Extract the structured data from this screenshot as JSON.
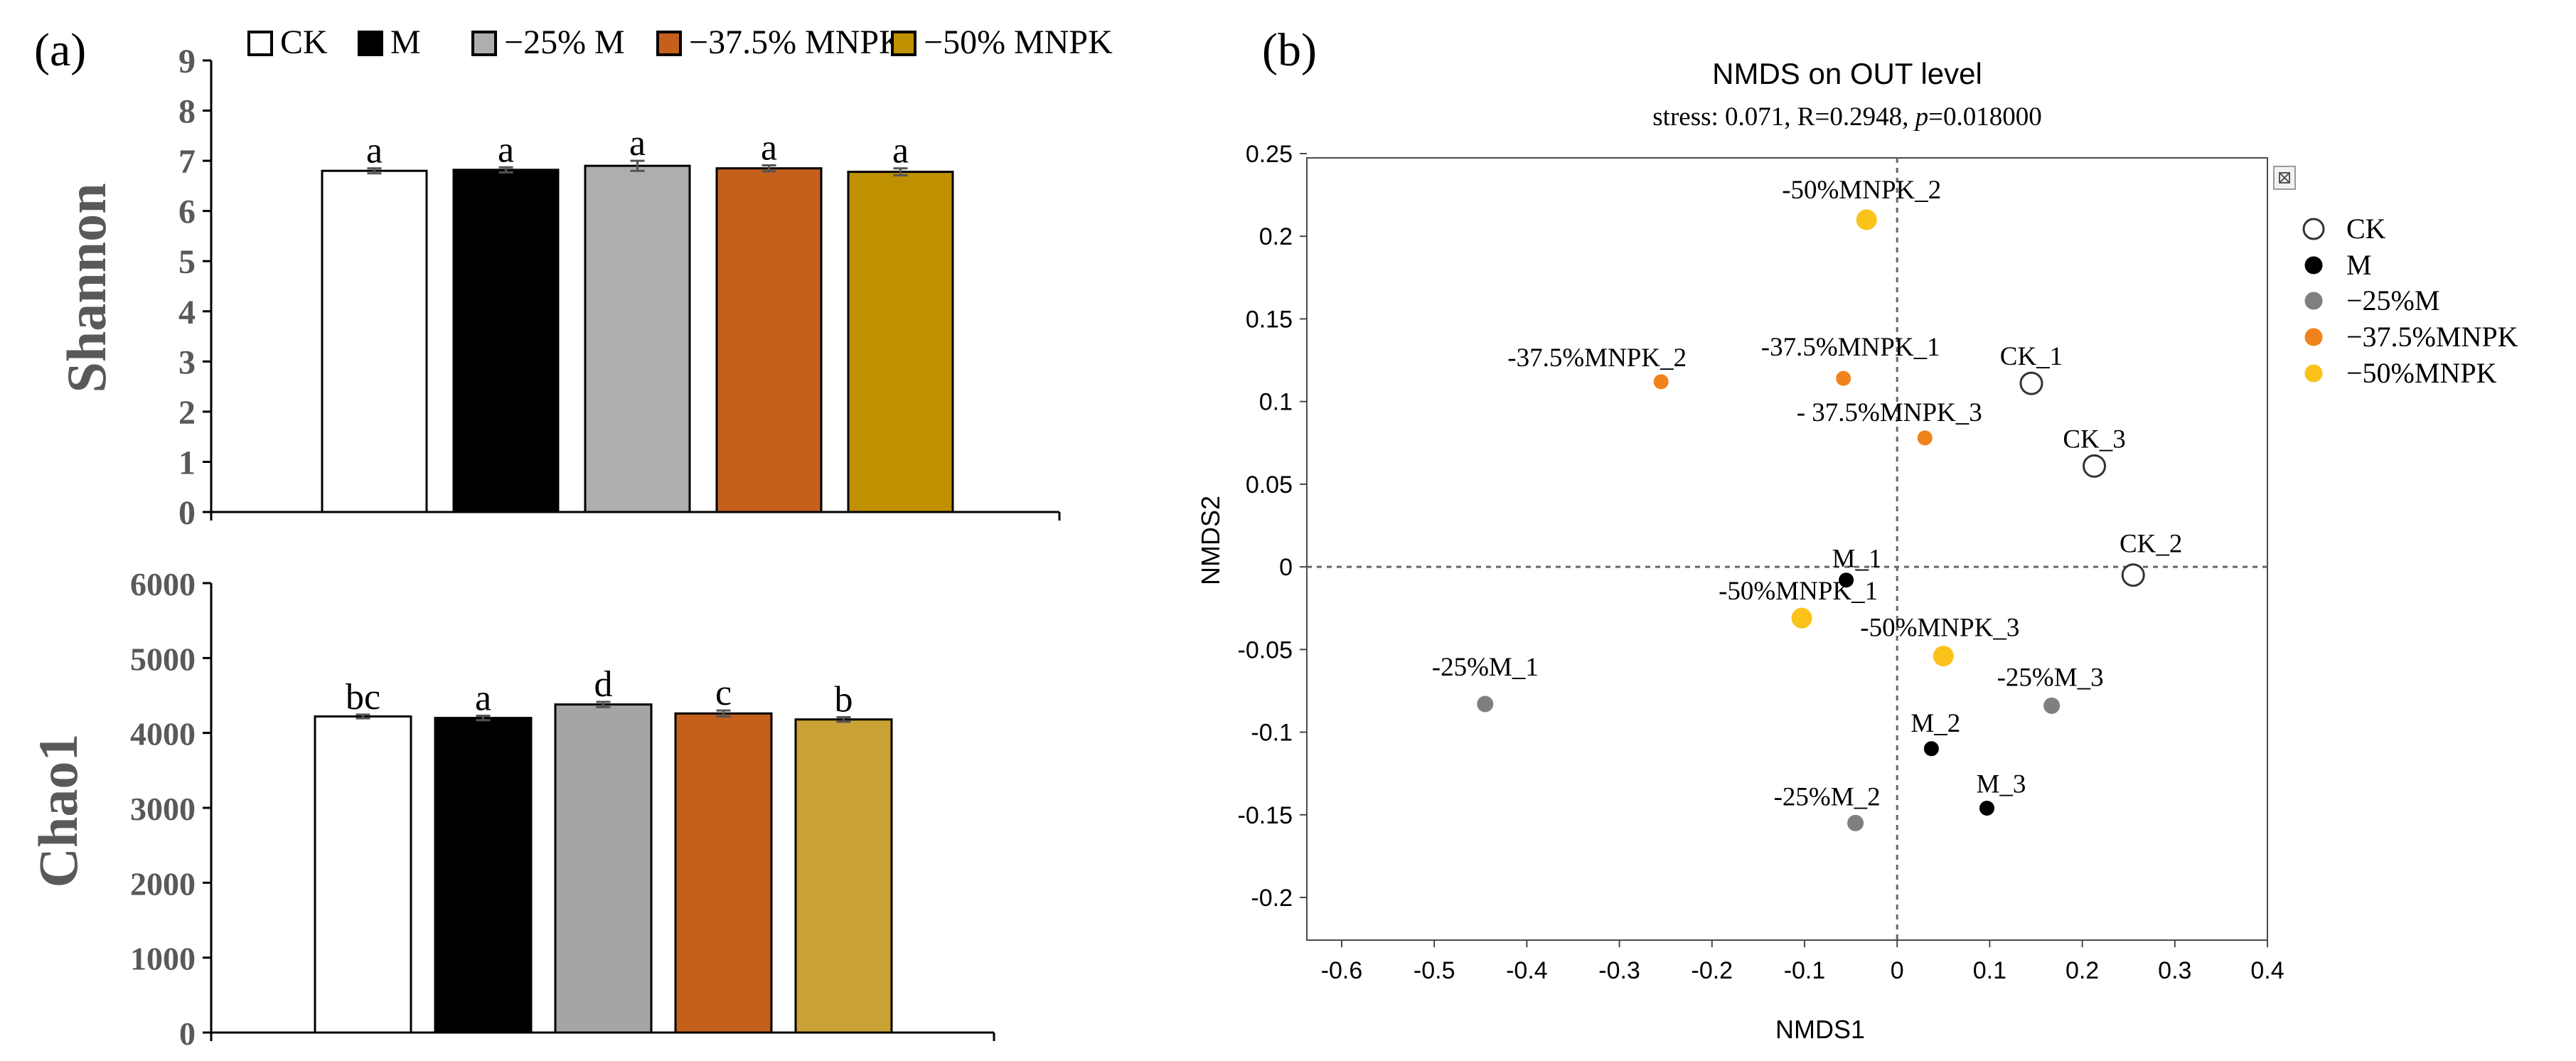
{
  "panel_a": {
    "label": "(a)",
    "legend": [
      {
        "label": "CK",
        "color": "#ffffff"
      },
      {
        "label": "M",
        "color": "#000000"
      },
      {
        "label": "−25% M",
        "color": "#b0aeac"
      },
      {
        "label": "−37.5% MNPK",
        "color": "#c5601c"
      },
      {
        "label": "−50% MNPK",
        "color": "#bf9000"
      }
    ]
  },
  "panel_b": {
    "label": "(b)",
    "stress_prefix": "stress: 0.071, R=0.2948, ",
    "p_symbol": "p",
    "p_value": "=0.018000",
    "legend": [
      {
        "label": "CK",
        "color": "#ffffff",
        "hollow": true
      },
      {
        "label": "M",
        "color": "#000000",
        "hollow": false
      },
      {
        "label": "−25%M",
        "color": "#7f7f7f",
        "hollow": false
      },
      {
        "label": "−37.5%MNPK",
        "color": "#f0831b",
        "hollow": false
      },
      {
        "label": "−50%MNPK",
        "color": "#fbc21a",
        "hollow": false
      }
    ]
  },
  "colors": {
    "axis_text_gray": "#595959",
    "ck": "#ffffff",
    "m": "#000000",
    "m25": "#b0aeac",
    "m375": "#c5601c",
    "m50": "#bf9000"
  },
  "chart_data": [
    {
      "type": "bar",
      "title": "",
      "ylabel": "Shannon",
      "xlabel": "",
      "categories": [
        "CK",
        "M",
        "−25% M",
        "−37.5% MNPK",
        "−50% MNPK"
      ],
      "values": [
        6.8,
        6.82,
        6.9,
        6.85,
        6.78
      ],
      "errors": [
        0.05,
        0.05,
        0.1,
        0.06,
        0.07
      ],
      "letters": [
        "a",
        "a",
        "a",
        "a",
        "a"
      ],
      "colors": [
        "#ffffff",
        "#000000",
        "#b0aeac",
        "#c5601c",
        "#bf9000"
      ],
      "ylim": [
        0,
        9
      ],
      "yticks": [
        0,
        1,
        2,
        3,
        4,
        5,
        6,
        7,
        8,
        9
      ]
    },
    {
      "type": "bar",
      "title": "",
      "ylabel": "Chao1",
      "xlabel": "",
      "categories": [
        "CK",
        "M",
        "−25% M",
        "−37.5% MNPK",
        "−50% MNPK"
      ],
      "values": [
        4220,
        4200,
        4380,
        4260,
        4180
      ],
      "errors": [
        25,
        30,
        35,
        40,
        30
      ],
      "letters": [
        "bc",
        "a",
        "d",
        "c",
        "b"
      ],
      "colors": [
        "#ffffff",
        "#000000",
        "#a5a5a5",
        "#c5601c",
        "#c9a135"
      ],
      "ylim": [
        0,
        6000
      ],
      "yticks": [
        0,
        1000,
        2000,
        3000,
        4000,
        5000,
        6000
      ]
    },
    {
      "type": "scatter",
      "title": "NMDS on OUT level",
      "xlabel": "NMDS1",
      "ylabel": "NMDS2",
      "xlim": [
        -0.65,
        0.4
      ],
      "ylim": [
        -0.22,
        0.25
      ],
      "xticks": [
        -0.6,
        -0.5,
        -0.4,
        -0.3,
        -0.2,
        -0.1,
        0,
        0.1,
        0.2,
        0.3,
        0.4
      ],
      "yticks": [
        0.25,
        0.2,
        0.15,
        0.1,
        0.05,
        0,
        -0.05,
        -0.1,
        -0.15,
        -0.2
      ],
      "points": [
        {
          "label": "CK_1",
          "group": "CK",
          "x": 0.145,
          "y": 0.111
        },
        {
          "label": "CK_3",
          "group": "CK",
          "x": 0.213,
          "y": 0.061
        },
        {
          "label": "CK_2",
          "group": "CK",
          "x": 0.255,
          "y": -0.005
        },
        {
          "label": "M_1",
          "group": "M",
          "x": -0.055,
          "y": -0.008
        },
        {
          "label": "M_2",
          "group": "M",
          "x": 0.037,
          "y": -0.11
        },
        {
          "label": "M_3",
          "group": "M",
          "x": 0.097,
          "y": -0.146
        },
        {
          "label": "-25%M_1",
          "group": "-25%M",
          "x": -0.445,
          "y": -0.083
        },
        {
          "label": "-25%M_3",
          "group": "-25%M",
          "x": 0.167,
          "y": -0.084
        },
        {
          "label": "-25%M_2",
          "group": "-25%M",
          "x": -0.045,
          "y": -0.155
        },
        {
          "label": "-37.5%MNPK_2",
          "group": "-37.5%MNPK",
          "x": -0.255,
          "y": 0.112
        },
        {
          "label": "-37.5%MNPK_1",
          "group": "-37.5%MNPK",
          "x": -0.058,
          "y": 0.114
        },
        {
          "label": "- 37.5%MNPK_3",
          "group": "-37.5%MNPK",
          "x": 0.03,
          "y": 0.078
        },
        {
          "label": "-50%MNPK_2",
          "group": "-50%MNPK",
          "x": -0.033,
          "y": 0.21
        },
        {
          "label": "-50%MNPK_1",
          "group": "-50%MNPK",
          "x": -0.103,
          "y": -0.031
        },
        {
          "label": "-50%MNPK_3",
          "group": "-50%MNPK",
          "x": 0.05,
          "y": -0.054
        }
      ],
      "group_colors": {
        "CK": "#ffffff",
        "M": "#000000",
        "-25%M": "#7f7f7f",
        "-37.5%MNPK": "#f0831b",
        "-50%MNPK": "#fbc21a"
      }
    }
  ]
}
